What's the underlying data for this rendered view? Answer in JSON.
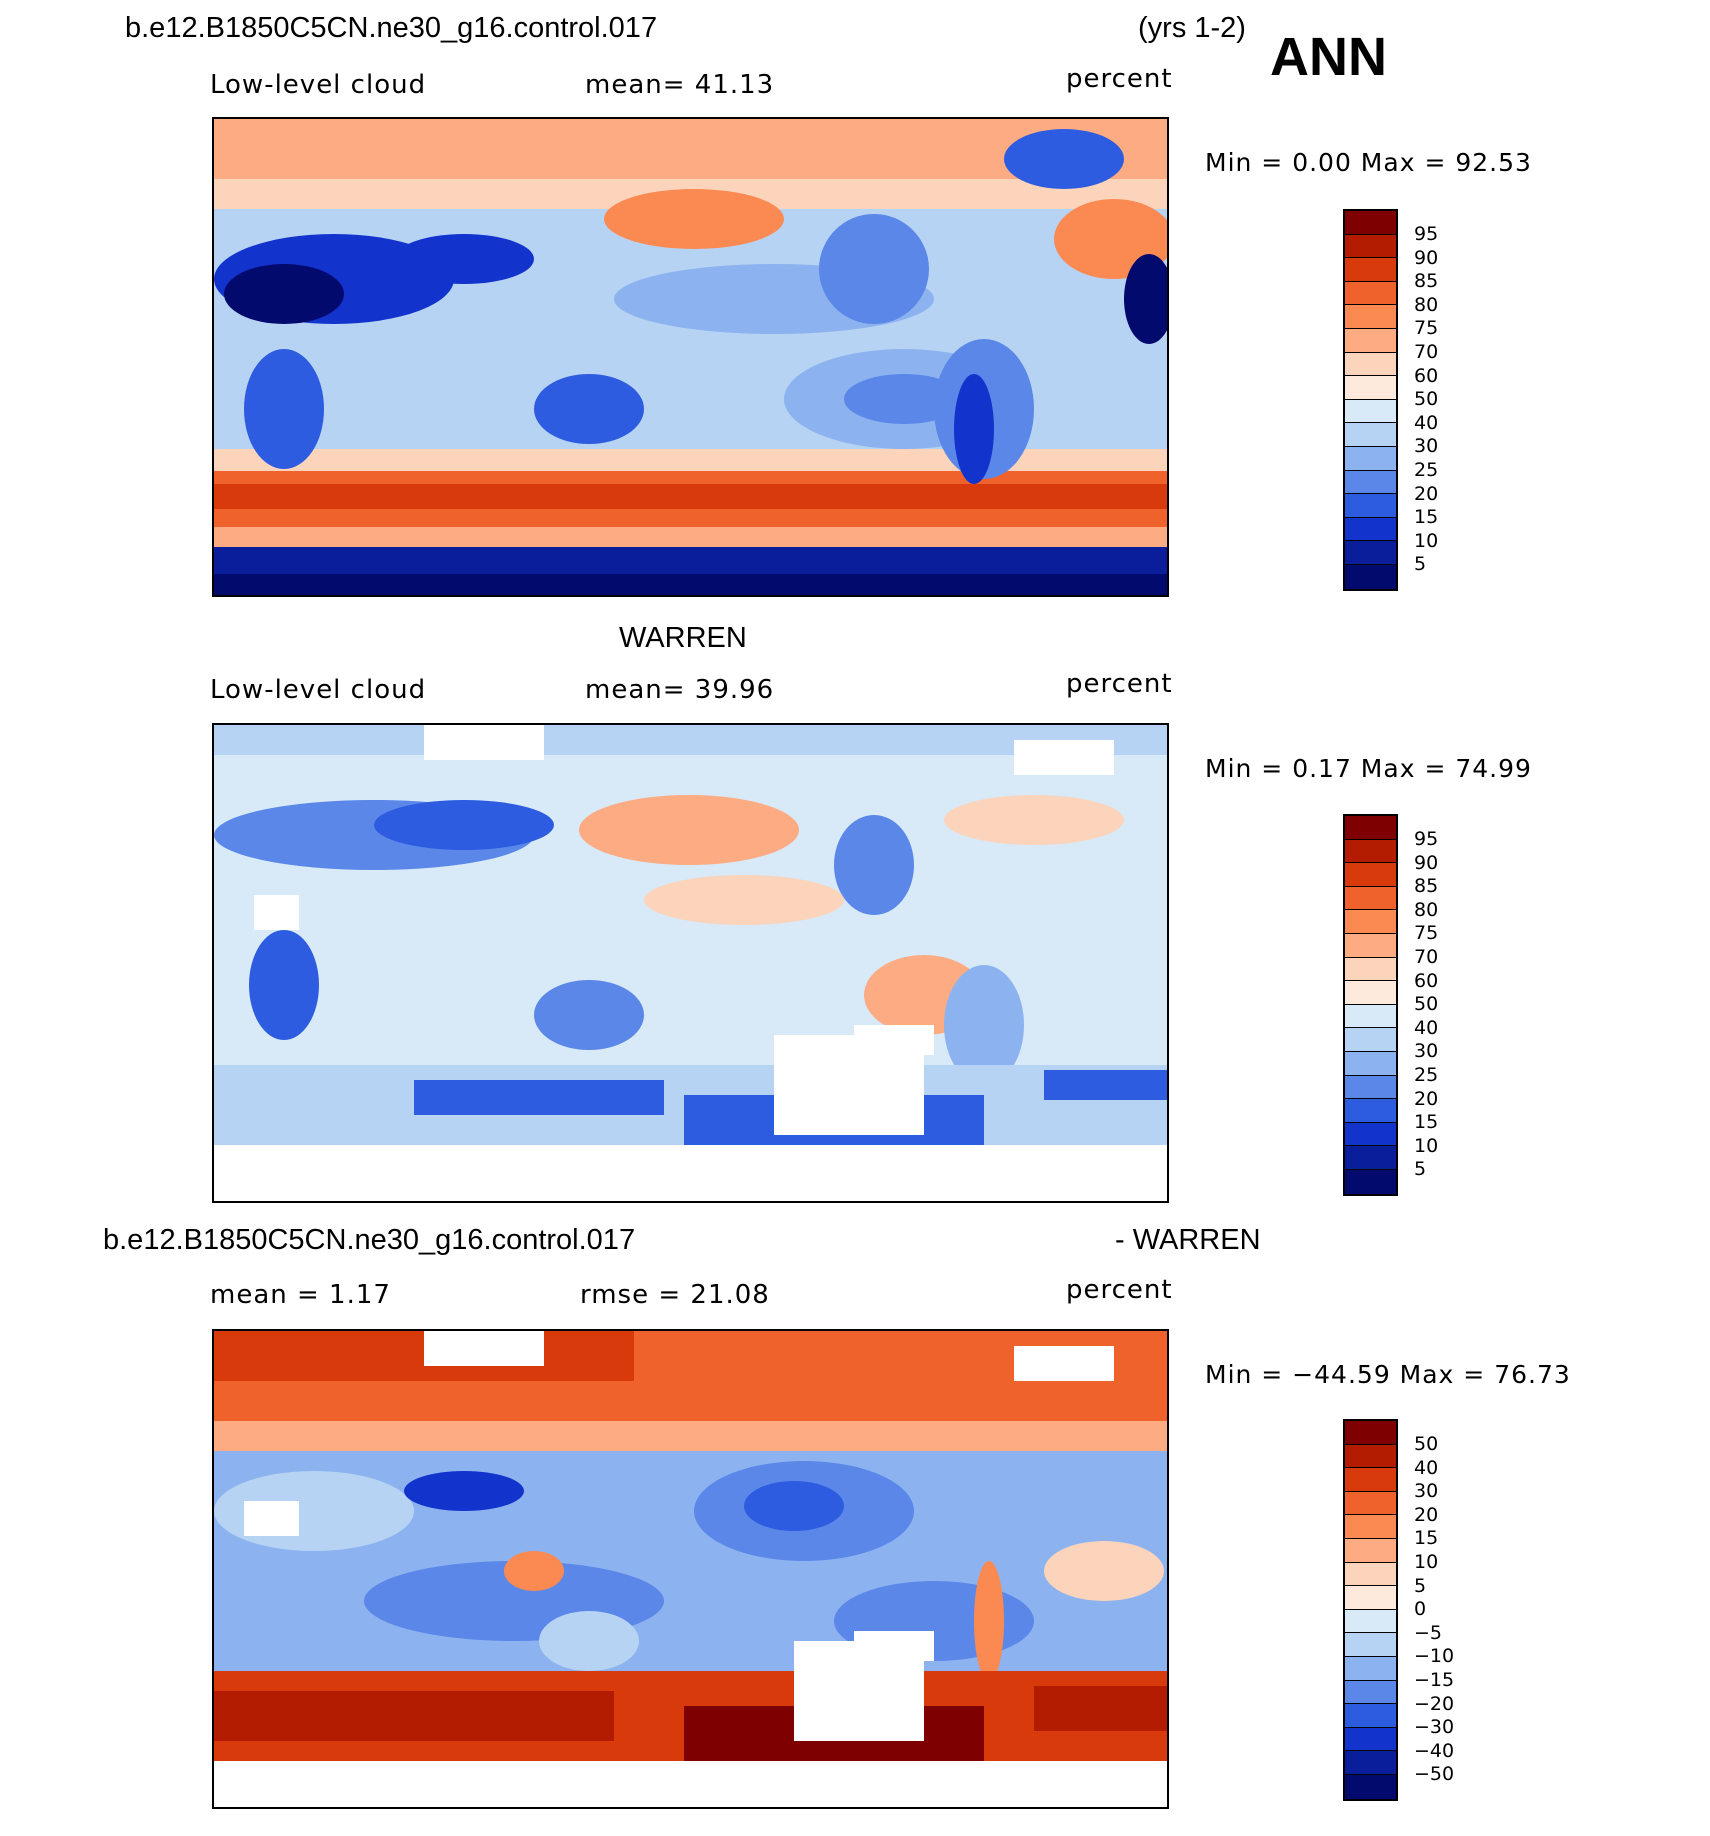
{
  "header": {
    "case_name": "b.e12.B1850C5CN.ne30_g16.control.017",
    "years": "(yrs 1-2)",
    "season": "ANN"
  },
  "panels": [
    {
      "id": "model",
      "left_label": "Low-level cloud",
      "center_label": "mean=   41.13",
      "units": "percent",
      "min_max": "Min =     0.00  Max =    92.53",
      "colorbar_labels": [
        "95",
        "90",
        "85",
        "80",
        "75",
        "70",
        "60",
        "50",
        "40",
        "30",
        "25",
        "20",
        "15",
        "10",
        "5"
      ]
    },
    {
      "id": "obs",
      "title": "WARREN",
      "left_label": "Low-level cloud",
      "center_label": "mean=   39.96",
      "units": "percent",
      "min_max": "Min =     0.17  Max =    74.99",
      "colorbar_labels": [
        "95",
        "90",
        "85",
        "80",
        "75",
        "70",
        "60",
        "50",
        "40",
        "30",
        "25",
        "20",
        "15",
        "10",
        "5"
      ]
    },
    {
      "id": "diff",
      "title_left": "b.e12.B1850C5CN.ne30_g16.control.017",
      "title_right": "- WARREN",
      "left_label": "mean =     1.17",
      "center_label": "rmse =    21.08",
      "units": "percent",
      "min_max": "Min = −44.59  Max =    76.73",
      "colorbar_labels": [
        "50",
        "40",
        "30",
        "20",
        "15",
        "10",
        "5",
        "0",
        "−5",
        "−10",
        "−15",
        "−20",
        "−30",
        "−40",
        "−50"
      ]
    }
  ],
  "colors": {
    "levels": [
      "#7f0000",
      "#b31c00",
      "#d83a0c",
      "#f0622c",
      "#fb8a52",
      "#fdab83",
      "#fcd3bb",
      "#fdeadc",
      "#d8e9f8",
      "#b7d3f4",
      "#8cb3ef",
      "#5a87e8",
      "#2d5ce0",
      "#1233cc",
      "#0a1e9c",
      "#020a6e"
    ]
  }
}
